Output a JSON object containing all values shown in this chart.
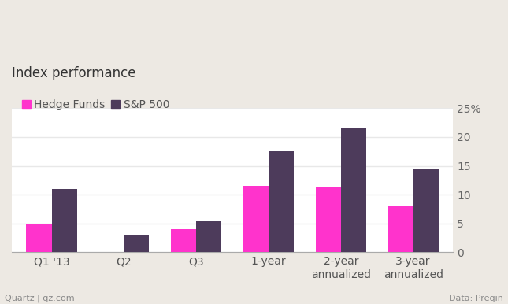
{
  "categories": [
    "Q1 '13",
    "Q2",
    "Q3",
    "1-year",
    "2-year\nannualized",
    "3-year\nannualized"
  ],
  "hedge_funds": [
    4.8,
    0.1,
    4.0,
    11.5,
    11.2,
    8.0
  ],
  "sp500": [
    11.0,
    3.0,
    5.5,
    17.5,
    21.5,
    14.5
  ],
  "hedge_color": "#FF33CC",
  "sp500_color": "#4D3B5B",
  "title": "Index performance",
  "legend_labels": [
    "Hedge Funds",
    "S&P 500"
  ],
  "ylim": [
    0,
    25
  ],
  "yticks": [
    0,
    5,
    10,
    15,
    20,
    25
  ],
  "background_color": "#ede9e3",
  "plot_bg_color": "#ffffff",
  "grid_color": "#e8e8e8",
  "footer_left": "Quartz | qz.com",
  "footer_right": "Data: Preqin",
  "title_fontsize": 12,
  "legend_fontsize": 10,
  "tick_fontsize": 10,
  "bar_width": 0.35
}
